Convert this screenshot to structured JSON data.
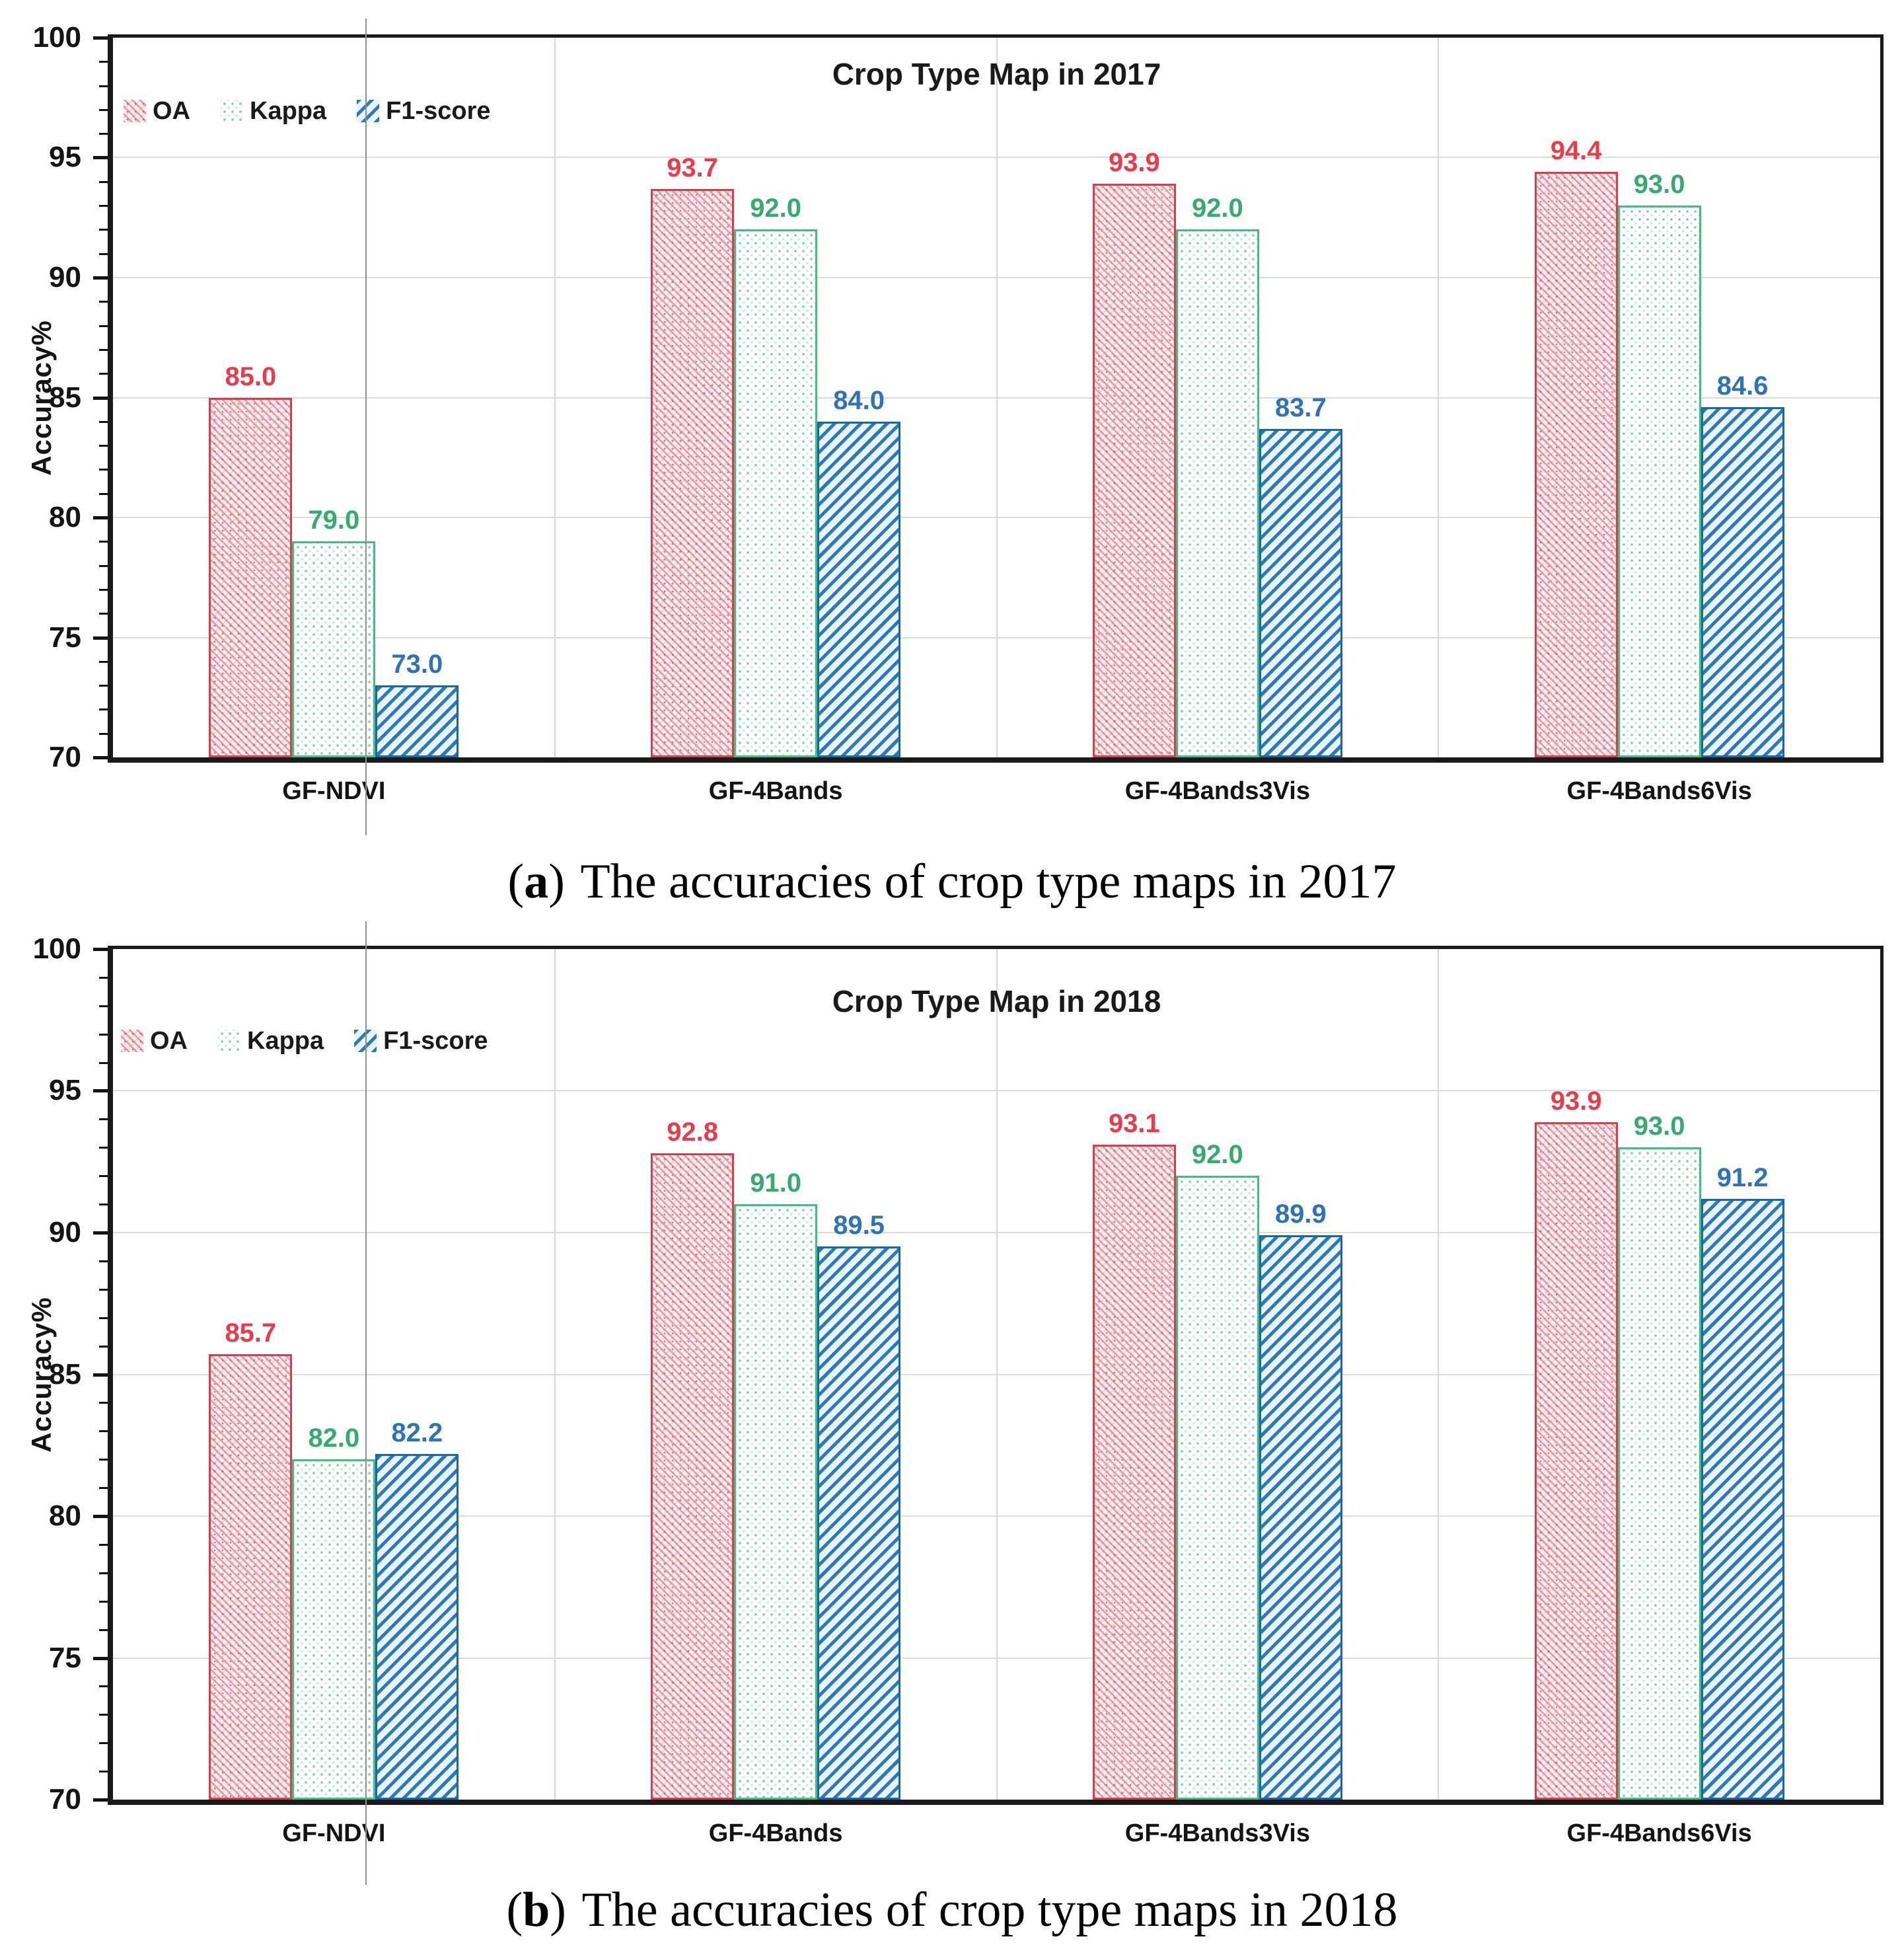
{
  "figure_title": "Crop type map accuracies figure",
  "chart_data": [
    {
      "type": "bar",
      "title": "Crop Type Map in 2017",
      "categories": [
        "GF-NDVI",
        "GF-4Bands",
        "GF-4Bands3Vis",
        "GF-4Bands6Vis"
      ],
      "series": [
        {
          "key": "oa",
          "name": "OA",
          "values": [
            85.0,
            93.7,
            93.9,
            94.4
          ],
          "border_color": "#d0414f",
          "label_color": "#e83c4b",
          "pattern": "fine diagonal red crosshatch with dots"
        },
        {
          "key": "kappa",
          "name": "Kappa",
          "values": [
            79.0,
            92.0,
            92.0,
            93.0
          ],
          "border_color": "#44bd85",
          "label_color": "#35ab6e",
          "pattern": "light green dot stipple"
        },
        {
          "key": "f1",
          "name": "F1-score",
          "values": [
            73.0,
            84.0,
            83.7,
            84.6
          ],
          "border_color": "#1a67a8",
          "label_color": "#2e74b5",
          "pattern": "blue diagonal stripes"
        }
      ],
      "y_axis": {
        "label": "Accuracy%",
        "min": 70,
        "max": 100,
        "major_step": 5,
        "minor_step": 1
      },
      "grid": {
        "horizontal": true,
        "vertical_category_separators": true,
        "color": "#dcdcdc"
      },
      "legend_position": "top-left inside plot",
      "value_label_decimals": 1,
      "caption": {
        "open": "(",
        "letter": "a",
        "close": ")",
        "text": "The accuracies of crop type maps in 2017"
      }
    },
    {
      "type": "bar",
      "title": "Crop Type Map in 2018",
      "categories": [
        "GF-NDVI",
        "GF-4Bands",
        "GF-4Bands3Vis",
        "GF-4Bands6Vis"
      ],
      "series": [
        {
          "key": "oa",
          "name": "OA",
          "values": [
            85.7,
            92.8,
            93.1,
            93.9
          ],
          "border_color": "#d0414f",
          "label_color": "#e83c4b",
          "pattern": "fine diagonal red crosshatch with dots"
        },
        {
          "key": "kappa",
          "name": "Kappa",
          "values": [
            82.0,
            91.0,
            92.0,
            93.0
          ],
          "border_color": "#44bd85",
          "label_color": "#35ab6e",
          "pattern": "light green dot stipple"
        },
        {
          "key": "f1",
          "name": "F1-score",
          "values": [
            82.2,
            89.5,
            89.9,
            91.2
          ],
          "border_color": "#1a67a8",
          "label_color": "#2e74b5",
          "pattern": "blue diagonal stripes"
        }
      ],
      "y_axis": {
        "label": "Accuracy%",
        "min": 70,
        "max": 100,
        "major_step": 5,
        "minor_step": 1
      },
      "grid": {
        "horizontal": true,
        "vertical_category_separators": true,
        "color": "#dcdcdc"
      },
      "legend_position": "top-left inside plot",
      "value_label_decimals": 1,
      "caption": {
        "open": "(",
        "letter": "b",
        "close": ")",
        "text": "The accuracies of crop type maps in 2018"
      }
    }
  ],
  "style_colors": {
    "axis": "#1a1a1a",
    "gridline": "#dcdcdc",
    "artifact_line": "#8f8f8f",
    "background": "#ffffff"
  }
}
